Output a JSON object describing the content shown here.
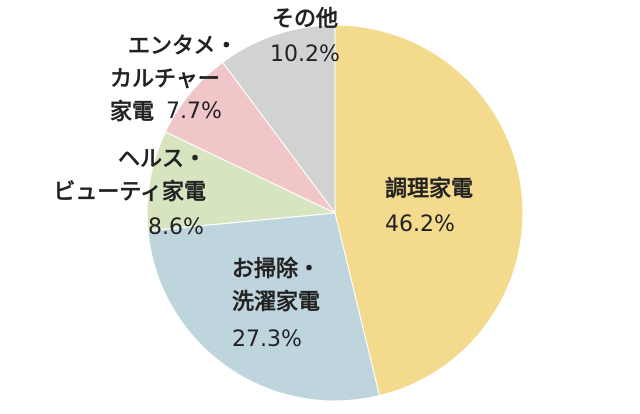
{
  "chart_data": {
    "type": "pie",
    "categories": [
      "調理家電",
      "お掃除・洗濯家電",
      "ヘルス・ビューティ家電",
      "エンタメ・カルチャー家電",
      "その他"
    ],
    "values": [
      46.2,
      27.3,
      8.6,
      7.7,
      10.2
    ],
    "value_labels": [
      "46.2%",
      "27.3%",
      "8.6%",
      "7.7%",
      "10.2%"
    ],
    "colors": [
      "#f3da8c",
      "#bed5dd",
      "#d6e5c0",
      "#f1c6c9",
      "#d2d2d2"
    ]
  }
}
